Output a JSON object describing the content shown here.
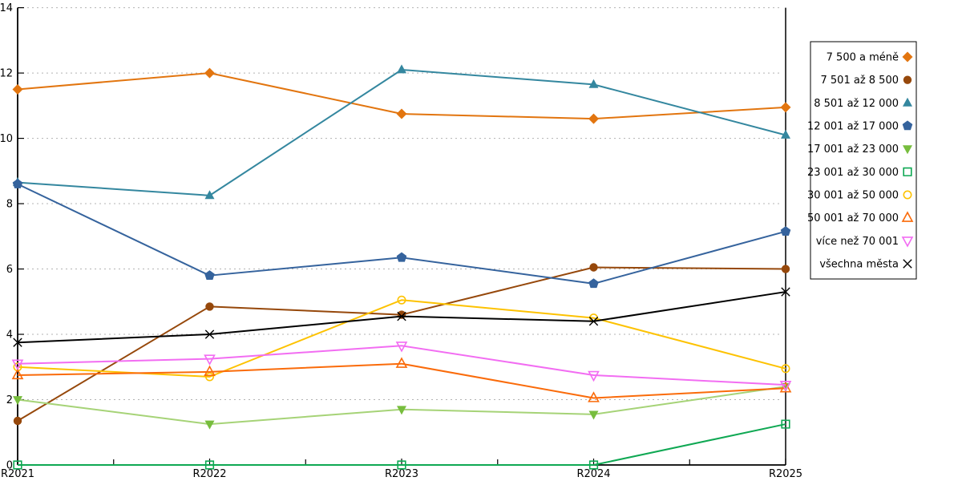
{
  "chart_data": {
    "type": "line",
    "title": "",
    "xlabel": "",
    "ylabel": "",
    "categories": [
      "R2021",
      "R2022",
      "R2023",
      "R2024",
      "R2025"
    ],
    "ylim": [
      0,
      14
    ],
    "ytick_step": 2,
    "ytick_labels": [
      "0",
      "2",
      "4",
      "6",
      "8",
      "10",
      "12",
      "14"
    ],
    "grid": "horizontal-dashed",
    "grid_color": "#b3b3b3",
    "axis_color": "#000000",
    "legend_position": "outside-top-right",
    "series": [
      {
        "name": "7 500 a méně",
        "marker": "diamond",
        "fill": "filled",
        "color": "#e2750f",
        "values": [
          11.5,
          12.0,
          10.75,
          10.6,
          10.95
        ]
      },
      {
        "name": "7 501 až 8 500",
        "marker": "circle",
        "fill": "filled",
        "color": "#96480b",
        "values": [
          1.35,
          4.85,
          4.6,
          6.05,
          6.0
        ]
      },
      {
        "name": "8 501 až 12 000",
        "marker": "triangle-up",
        "fill": "filled",
        "color": "#34879f",
        "values": [
          8.65,
          8.25,
          12.1,
          11.65,
          10.1
        ]
      },
      {
        "name": "12 001 až 17 000",
        "marker": "pentagon",
        "fill": "filled",
        "color": "#35639d",
        "values": [
          8.6,
          5.8,
          6.35,
          5.55,
          7.15
        ]
      },
      {
        "name": "17 001 až 23 000",
        "marker": "triangle-down",
        "fill": "filled",
        "color": "#77bd3d",
        "line_color": "#a6d377",
        "values": [
          2.0,
          1.25,
          1.7,
          1.55,
          2.4
        ]
      },
      {
        "name": "23 001 až 30 000",
        "marker": "square",
        "fill": "open",
        "color": "#0fa853",
        "values": [
          0,
          0,
          0,
          0,
          1.25
        ]
      },
      {
        "name": "30 001 až 50 000",
        "marker": "circle",
        "fill": "open",
        "color": "#fdc201",
        "values": [
          3.0,
          2.7,
          5.05,
          4.5,
          2.95
        ]
      },
      {
        "name": "50 001 až 70 000",
        "marker": "triangle-up",
        "fill": "open",
        "color": "#fa6b0a",
        "values": [
          2.75,
          2.85,
          3.1,
          2.05,
          2.35
        ]
      },
      {
        "name": "více než 70 001",
        "marker": "triangle-down",
        "fill": "open",
        "color": "#f26df2",
        "values": [
          3.1,
          3.25,
          3.65,
          2.75,
          2.45
        ]
      },
      {
        "name": "všechna města",
        "marker": "x-cross",
        "fill": "open",
        "color": "#000000",
        "values": [
          3.75,
          4.0,
          4.55,
          4.4,
          5.3
        ]
      }
    ]
  }
}
